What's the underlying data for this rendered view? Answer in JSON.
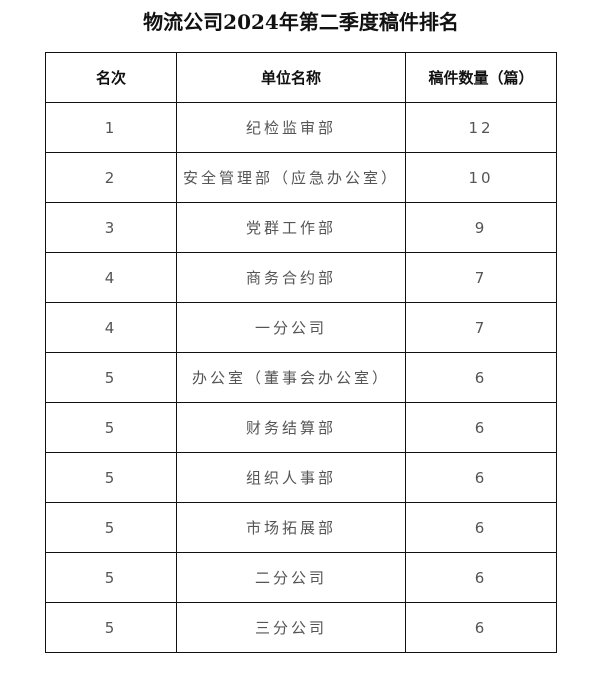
{
  "title": "物流公司2024年第二季度稿件排名",
  "table": {
    "headers": [
      "名次",
      "单位名称",
      "稿件数量（篇）"
    ],
    "rows": [
      [
        "1",
        "纪检监审部",
        "12"
      ],
      [
        "2",
        "安全管理部（应急办公室）",
        "10"
      ],
      [
        "3",
        "党群工作部",
        "9"
      ],
      [
        "4",
        "商务合约部",
        "7"
      ],
      [
        "4",
        "一分公司",
        "7"
      ],
      [
        "5",
        "办公室（董事会办公室）",
        "6"
      ],
      [
        "5",
        "财务结算部",
        "6"
      ],
      [
        "5",
        "组织人事部",
        "6"
      ],
      [
        "5",
        "市场拓展部",
        "6"
      ],
      [
        "5",
        "二分公司",
        "6"
      ],
      [
        "5",
        "三分公司",
        "6"
      ]
    ]
  }
}
